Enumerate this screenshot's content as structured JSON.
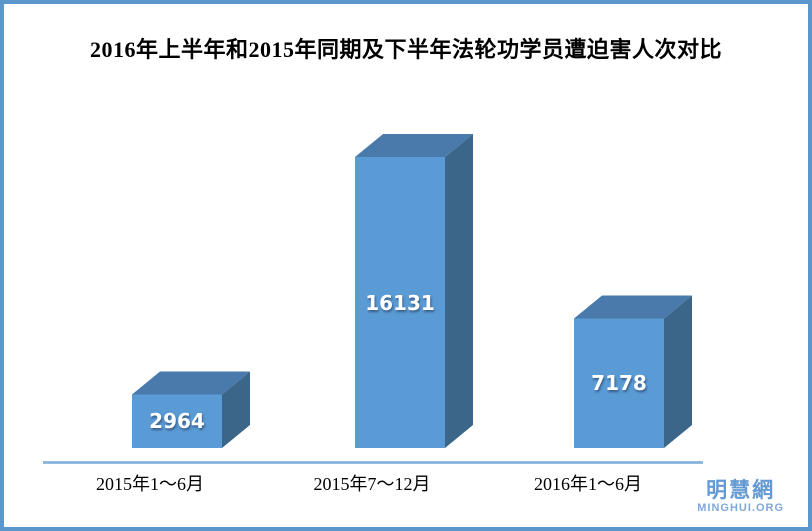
{
  "frame": {
    "border_color": "#5b97cb",
    "background": "#ffffff"
  },
  "chart_data": {
    "type": "bar",
    "style": "3d-box",
    "title": "2016年上半年和2015年同期及下半年法轮功学员遭迫害人次对比",
    "categories": [
      "2015年1～6月",
      "2015年7～12月",
      "2016年1～6月"
    ],
    "values": [
      2964,
      16131,
      7178
    ],
    "series": [
      {
        "name": "遭迫害人次",
        "values": [
          2964,
          16131,
          7178
        ]
      }
    ],
    "xlabel": "",
    "ylabel": "",
    "ylim": [
      0,
      16500
    ],
    "grid": false,
    "legend": "none",
    "value_labels_shown": true,
    "colors": {
      "bar_front": "#5b9bd5",
      "bar_top": "#4a7aab",
      "bar_side": "#3c6689",
      "axis_line": "#86b0da",
      "value_text": "#ffffff",
      "label_text": "#000000"
    }
  },
  "watermark": {
    "line1": "明慧網",
    "line2": "MINGHUI.ORG",
    "color": "#649ad3"
  }
}
